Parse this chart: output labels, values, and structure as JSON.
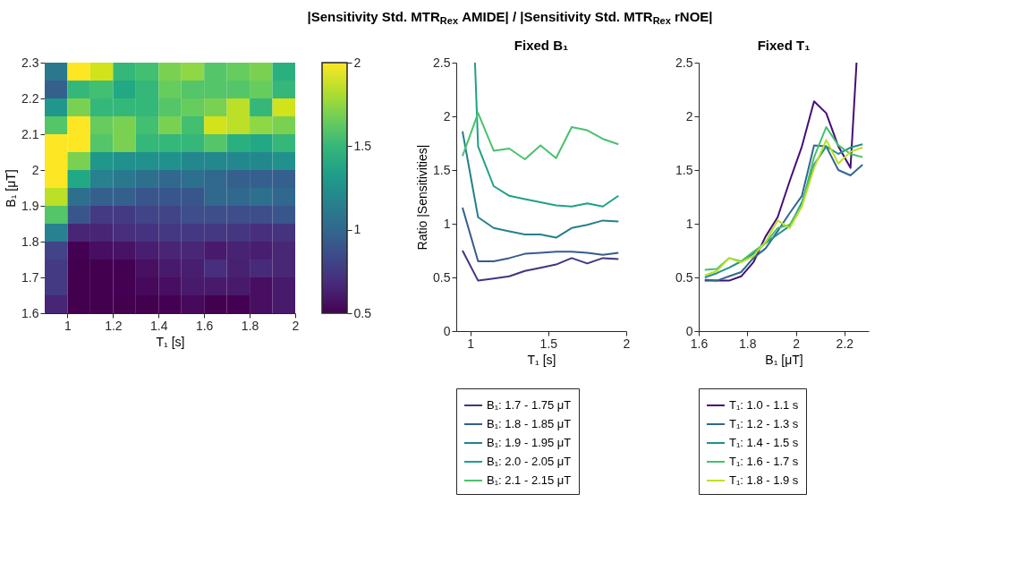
{
  "chart_data": [
    {
      "type": "heatmap",
      "xlabel": "T₁ [s]",
      "ylabel": "B₁ [μT]",
      "x": [
        0.95,
        1.05,
        1.15,
        1.25,
        1.35,
        1.45,
        1.55,
        1.65,
        1.75,
        1.85,
        1.95
      ],
      "y": [
        2.275,
        2.225,
        2.175,
        2.125,
        2.075,
        2.025,
        1.975,
        1.925,
        1.875,
        1.825,
        1.775,
        1.725,
        1.675,
        1.625
      ],
      "xlim": [
        0.9,
        2.0
      ],
      "ylim": [
        1.6,
        2.3
      ],
      "xticks": [
        1,
        1.2,
        1.4,
        1.6,
        1.8,
        2
      ],
      "yticks": [
        1.6,
        1.7,
        1.8,
        1.9,
        2,
        2.1,
        2.2,
        2.3
      ],
      "clim": [
        0.5,
        2
      ],
      "cticks": [
        0.5,
        1,
        1.5,
        2
      ],
      "cells": [
        [
          1.1,
          2,
          1.9,
          1.5,
          1.55,
          1.7,
          1.75,
          1.6,
          1.65,
          1.7,
          1.45
        ],
        [
          0.95,
          1.5,
          1.55,
          1.4,
          1.5,
          1.65,
          1.6,
          1.6,
          1.6,
          1.65,
          1.5
        ],
        [
          1.3,
          1.7,
          1.5,
          1.5,
          1.5,
          1.6,
          1.65,
          1.7,
          1.85,
          1.5,
          1.9
        ],
        [
          1.6,
          2,
          1.65,
          1.7,
          1.55,
          1.7,
          1.55,
          1.9,
          1.85,
          1.75,
          1.7
        ],
        [
          2,
          2,
          1.6,
          1.7,
          1.5,
          1.5,
          1.5,
          1.6,
          1.45,
          1.4,
          1.5
        ],
        [
          2,
          1.7,
          1.3,
          1.25,
          1.25,
          1.25,
          1.2,
          1.2,
          1.2,
          1.2,
          1.25
        ],
        [
          2,
          1.4,
          1.15,
          1.1,
          1.05,
          1.0,
          1.05,
          1.0,
          0.95,
          0.95,
          0.95
        ],
        [
          1.85,
          1.05,
          0.95,
          0.95,
          0.9,
          0.9,
          0.9,
          1.0,
          1.0,
          1.05,
          1.0
        ],
        [
          1.6,
          0.9,
          0.75,
          0.75,
          0.8,
          0.8,
          0.85,
          0.85,
          0.85,
          0.85,
          0.9
        ],
        [
          1.15,
          0.65,
          0.65,
          0.7,
          0.72,
          0.74,
          0.74,
          0.74,
          0.73,
          0.7,
          0.72
        ],
        [
          0.8,
          0.5,
          0.55,
          0.57,
          0.62,
          0.65,
          0.66,
          0.6,
          0.64,
          0.62,
          0.66
        ],
        [
          0.75,
          0.48,
          0.48,
          0.5,
          0.56,
          0.6,
          0.62,
          0.7,
          0.63,
          0.68,
          0.66
        ],
        [
          0.75,
          0.48,
          0.48,
          0.5,
          0.53,
          0.55,
          0.6,
          0.6,
          0.6,
          0.55,
          0.6
        ],
        [
          0.65,
          0.48,
          0.48,
          0.48,
          0.48,
          0.5,
          0.53,
          0.48,
          0.5,
          0.55,
          0.6
        ]
      ]
    },
    {
      "type": "line",
      "title": "Fixed B₁",
      "annotations": [
        "|Sensitivity Std. MTR$_{Rex}$ AMIDE| / |Sensitivity Std. MTR$_{Rex}$ rNOE|"
      ],
      "xlabel": "T₁ [s]",
      "ylabel": "Ratio |Sensitivities|",
      "legend": "bottom",
      "x": [
        0.95,
        1.05,
        1.15,
        1.25,
        1.35,
        1.45,
        1.55,
        1.65,
        1.75,
        1.85,
        1.95
      ],
      "xlim": [
        0.91,
        2.0
      ],
      "ylim": [
        0,
        2.5
      ],
      "xticks": [
        1,
        1.5,
        2
      ],
      "yticks": [
        0,
        0.5,
        1,
        1.5,
        2,
        2.5
      ],
      "series": [
        {
          "name": "B₁: 1.7 - 1.75 μT",
          "color": "#46337e",
          "values": [
            0.75,
            0.47,
            0.49,
            0.51,
            0.56,
            0.59,
            0.62,
            0.68,
            0.63,
            0.68,
            0.67
          ]
        },
        {
          "name": "B₁: 1.8 - 1.85 μT",
          "color": "#365c8d",
          "values": [
            1.15,
            0.65,
            0.65,
            0.68,
            0.72,
            0.73,
            0.74,
            0.74,
            0.73,
            0.71,
            0.73
          ]
        },
        {
          "name": "B₁: 1.9 - 1.95 μT",
          "color": "#277f8e",
          "values": [
            1.86,
            1.06,
            0.96,
            0.93,
            0.9,
            0.9,
            0.87,
            0.96,
            0.99,
            1.03,
            1.02
          ]
        },
        {
          "name": "B₁: 2.0 - 2.05 μT",
          "color": "#1fa187",
          "x": [
            1.03,
            1.05,
            1.15,
            1.25,
            1.35,
            1.45,
            1.55,
            1.65,
            1.75,
            1.85,
            1.95
          ],
          "values": [
            2.5,
            1.72,
            1.35,
            1.26,
            1.23,
            1.2,
            1.17,
            1.16,
            1.19,
            1.16,
            1.26
          ]
        },
        {
          "name": "B₁: 2.1 - 2.15 μT",
          "color": "#4ac16d",
          "values": [
            1.63,
            2.03,
            1.68,
            1.7,
            1.6,
            1.73,
            1.61,
            1.9,
            1.87,
            1.79,
            1.74
          ]
        }
      ]
    },
    {
      "type": "line",
      "title": "Fixed T₁",
      "xlabel": "B₁ [μT]",
      "legend": "bottom",
      "x": [
        1.625,
        1.675,
        1.725,
        1.775,
        1.825,
        1.875,
        1.925,
        1.975,
        2.025,
        2.075,
        2.125,
        2.175,
        2.225,
        2.275
      ],
      "xlim": [
        1.6,
        2.3
      ],
      "ylim": [
        0,
        2.5
      ],
      "xticks": [
        1.6,
        1.8,
        2,
        2.2
      ],
      "yticks": [
        0,
        0.5,
        1,
        1.5,
        2,
        2.5
      ],
      "series": [
        {
          "name": "T₁: 1.0 - 1.1 s",
          "color": "#440f76",
          "x": [
            1.625,
            1.675,
            1.725,
            1.775,
            1.825,
            1.875,
            1.925,
            1.975,
            2.025,
            2.075,
            2.125,
            2.175,
            2.225,
            2.25
          ],
          "values": [
            0.47,
            0.47,
            0.47,
            0.51,
            0.64,
            0.88,
            1.06,
            1.4,
            1.72,
            2.14,
            2.03,
            1.72,
            1.52,
            2.5
          ]
        },
        {
          "name": "T₁: 1.2 - 1.3 s",
          "color": "#31688e",
          "values": [
            0.48,
            0.47,
            0.51,
            0.55,
            0.68,
            0.77,
            0.93,
            1.1,
            1.26,
            1.73,
            1.72,
            1.5,
            1.45,
            1.55
          ]
        },
        {
          "name": "T₁: 1.4 - 1.5 s",
          "color": "#21918c",
          "values": [
            0.5,
            0.54,
            0.59,
            0.65,
            0.72,
            0.82,
            0.9,
            0.98,
            1.2,
            1.55,
            1.72,
            1.65,
            1.71,
            1.74
          ]
        },
        {
          "name": "T₁: 1.6 - 1.7 s",
          "color": "#44bf70",
          "values": [
            0.57,
            0.58,
            0.68,
            0.65,
            0.74,
            0.82,
            0.96,
            0.99,
            1.18,
            1.62,
            1.9,
            1.73,
            1.65,
            1.62
          ]
        },
        {
          "name": "T₁: 1.8 - 1.9 s",
          "color": "#bddf26",
          "values": [
            0.52,
            0.56,
            0.68,
            0.64,
            0.7,
            0.83,
            1.03,
            0.96,
            1.16,
            1.52,
            1.78,
            1.56,
            1.67,
            1.71
          ]
        }
      ]
    }
  ]
}
